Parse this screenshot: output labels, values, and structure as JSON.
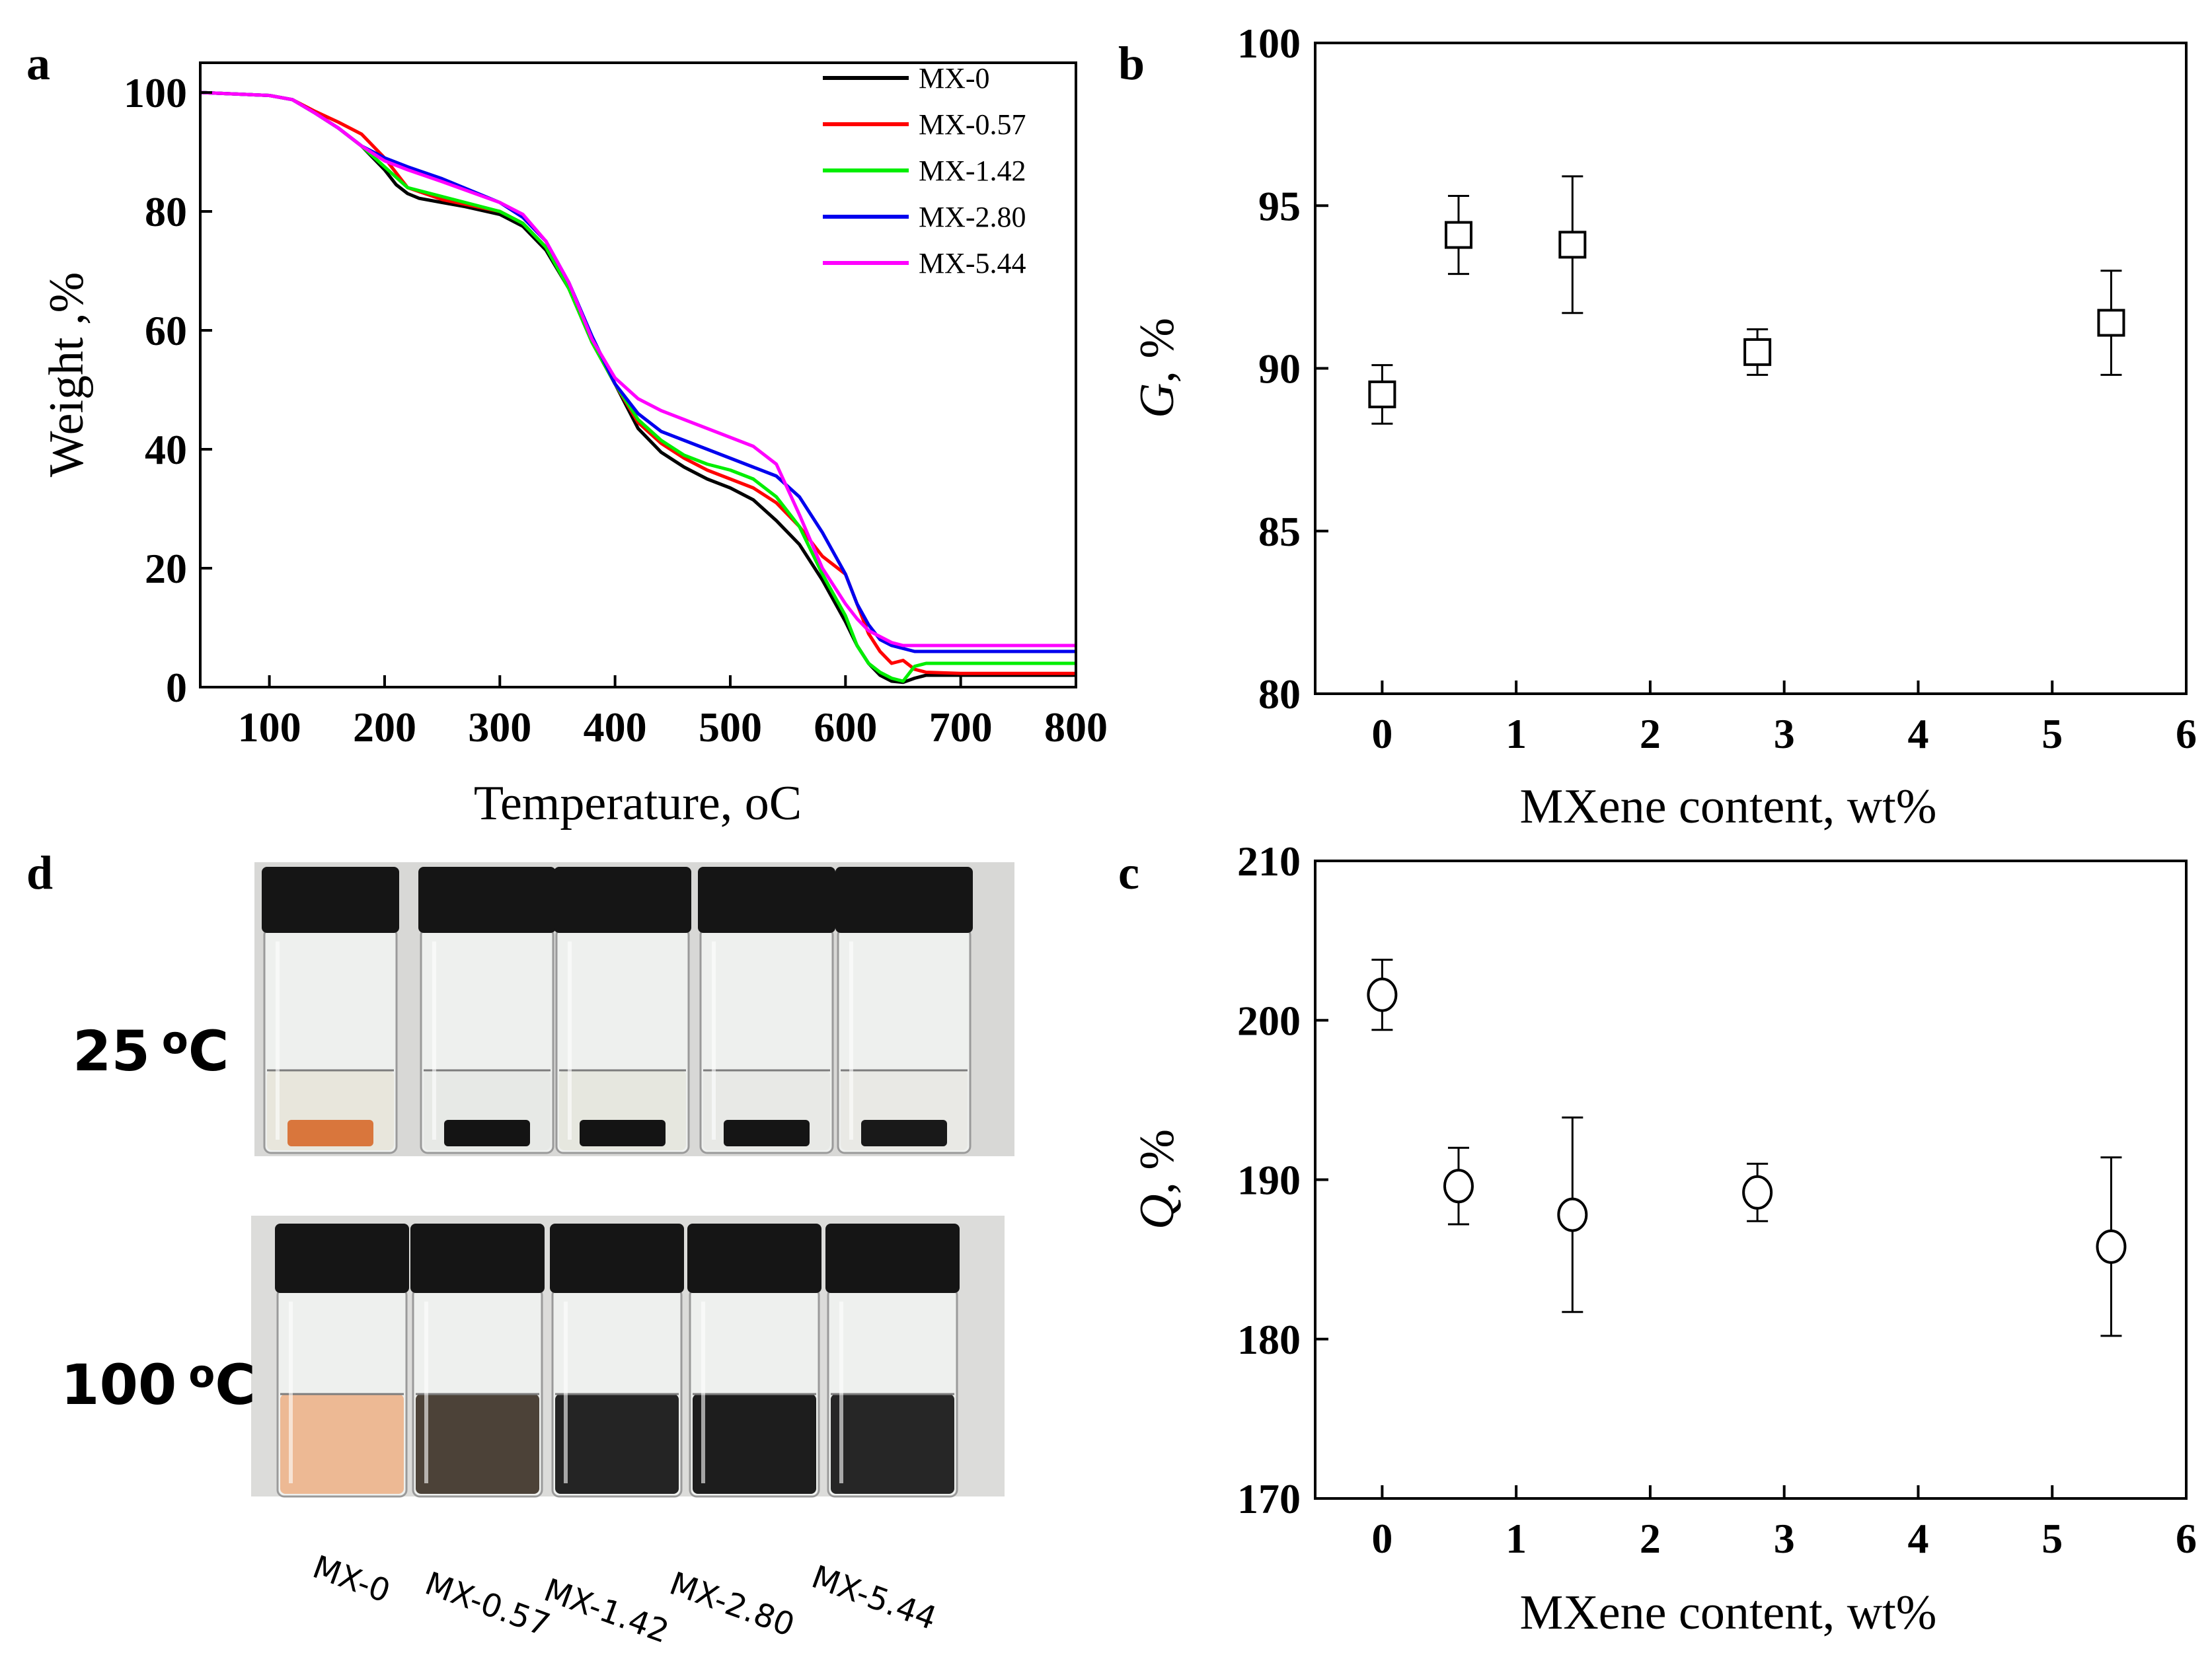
{
  "panels": {
    "a": {
      "letter": "a",
      "chart_data": {
        "type": "line",
        "title": "",
        "xlabel": "Temperature, oC",
        "ylabel": "Weight ,%",
        "xlim": [
          40,
          800
        ],
        "ylim": [
          0,
          105
        ],
        "xticks": [
          100,
          200,
          300,
          400,
          500,
          600,
          700,
          800
        ],
        "yticks": [
          0,
          20,
          40,
          60,
          80,
          100
        ],
        "legend_position": "top-right",
        "series": [
          {
            "name": "MX-0",
            "color": "#000000",
            "x": [
              40,
              100,
              120,
              140,
              160,
              180,
              200,
              210,
              220,
              230,
              250,
              270,
              300,
              320,
              340,
              360,
              380,
              400,
              420,
              440,
              460,
              480,
              500,
              520,
              540,
              560,
              580,
              600,
              610,
              620,
              630,
              640,
              650,
              660,
              670,
              700,
              800
            ],
            "y": [
              100,
              99.5,
              98.8,
              96.5,
              94,
              91,
              87,
              84.5,
              83,
              82.2,
              81.5,
              80.8,
              79.5,
              77.5,
              73.5,
              67,
              58,
              51,
              43.5,
              39.5,
              37,
              35,
              33.5,
              31.5,
              28,
              24,
              18,
              11,
              7,
              4,
              2,
              1,
              0.8,
              1.5,
              2,
              2,
              2
            ]
          },
          {
            "name": "MX-0.57",
            "color": "#ff0000",
            "x": [
              40,
              100,
              120,
              140,
              160,
              180,
              200,
              220,
              250,
              300,
              320,
              340,
              360,
              380,
              400,
              420,
              440,
              460,
              480,
              500,
              520,
              540,
              560,
              580,
              600,
              610,
              620,
              630,
              640,
              650,
              660,
              670,
              700,
              800
            ],
            "y": [
              100,
              99.5,
              98.8,
              96.8,
              95,
              93,
              89,
              84,
              82,
              80,
              78,
              74,
              67,
              58,
              51,
              44.5,
              41,
              38.5,
              36.5,
              35,
              33.5,
              31,
              27,
              22,
              19,
              14,
              9,
              6,
              4,
              4.5,
              3,
              2.5,
              2.3,
              2.3
            ]
          },
          {
            "name": "MX-1.42",
            "color": "#00ee00",
            "x": [
              40,
              100,
              120,
              140,
              160,
              180,
              200,
              220,
              250,
              300,
              320,
              340,
              360,
              380,
              400,
              420,
              440,
              460,
              480,
              500,
              520,
              540,
              560,
              580,
              600,
              610,
              620,
              630,
              640,
              650,
              660,
              670,
              700,
              800
            ],
            "y": [
              100,
              99.5,
              98.8,
              96.5,
              94,
              91,
              87.5,
              84,
              82.5,
              80,
              78,
              74,
              67,
              58,
              51,
              45,
              41.5,
              39,
              37.5,
              36.5,
              35,
              32,
              27,
              19,
              12,
              7,
              4,
              2.5,
              1.5,
              1,
              3.5,
              4,
              4,
              4
            ]
          },
          {
            "name": "MX-2.80",
            "color": "#0000ee",
            "x": [
              40,
              100,
              120,
              140,
              160,
              180,
              200,
              220,
              250,
              300,
              320,
              340,
              360,
              380,
              400,
              420,
              440,
              460,
              480,
              500,
              520,
              540,
              560,
              580,
              600,
              610,
              620,
              630,
              640,
              650,
              660,
              670,
              700,
              800
            ],
            "y": [
              100,
              99.5,
              98.8,
              96.5,
              94,
              91,
              89,
              87.5,
              85.5,
              81.5,
              79,
              75,
              68,
              59,
              51,
              46,
              43,
              41.5,
              40,
              38.5,
              37,
              35.5,
              32,
              26,
              19,
              14,
              10.5,
              8,
              7,
              6.5,
              6,
              6,
              6,
              6
            ]
          },
          {
            "name": "MX-5.44",
            "color": "#ff00ff",
            "x": [
              40,
              100,
              120,
              140,
              160,
              180,
              200,
              220,
              250,
              300,
              320,
              340,
              360,
              380,
              400,
              420,
              440,
              460,
              480,
              500,
              520,
              540,
              560,
              580,
              600,
              610,
              620,
              630,
              640,
              650,
              660,
              670,
              700,
              800
            ],
            "y": [
              100,
              99.5,
              98.8,
              96.5,
              94,
              91,
              88.5,
              87,
              85,
              81.5,
              79.5,
              75,
              68,
              58.5,
              52,
              48.5,
              46.5,
              45,
              43.5,
              42,
              40.5,
              37.5,
              29,
              20,
              14,
              11.5,
              9.5,
              8.5,
              7.5,
              7,
              7,
              7,
              7,
              7
            ]
          }
        ]
      }
    },
    "b": {
      "letter": "b",
      "chart_data": {
        "type": "scatter",
        "title": "",
        "xlabel": "MXene content, wt%",
        "ylabel_symbol": "G",
        "ylabel_unit": ", %",
        "xlim": [
          -0.5,
          6
        ],
        "ylim": [
          80,
          100
        ],
        "xticks": [
          0,
          1,
          2,
          3,
          4,
          5,
          6
        ],
        "yticks": [
          80,
          85,
          90,
          95,
          100
        ],
        "marker": "square-open",
        "series": [
          {
            "name": "G",
            "x": [
              0,
              0.57,
              1.42,
              2.8,
              5.44
            ],
            "y": [
              89.2,
              94.1,
              93.8,
              90.5,
              91.4
            ],
            "err": [
              0.9,
              1.2,
              2.1,
              0.7,
              1.6
            ]
          }
        ]
      }
    },
    "c": {
      "letter": "c",
      "chart_data": {
        "type": "scatter",
        "title": "",
        "xlabel": "MXene content, wt%",
        "ylabel_symbol": "Q",
        "ylabel_unit": ", %",
        "xlim": [
          -0.5,
          6
        ],
        "ylim": [
          170,
          210
        ],
        "xticks": [
          0,
          1,
          2,
          3,
          4,
          5,
          6
        ],
        "yticks": [
          170,
          180,
          190,
          200,
          210
        ],
        "marker": "circle-open",
        "series": [
          {
            "name": "Q",
            "x": [
              0,
              0.57,
              1.42,
              2.8,
              5.44
            ],
            "y": [
              201.6,
              189.6,
              187.8,
              189.2,
              185.8
            ],
            "err": [
              2.2,
              2.4,
              6.1,
              1.8,
              5.6
            ]
          }
        ]
      }
    },
    "d": {
      "letter": "d",
      "row_labels": [
        {
          "value": "25",
          "unit_sup": "o",
          "unit": "C"
        },
        {
          "value": "100",
          "unit_sup": "o",
          "unit": "C"
        }
      ],
      "vial_labels": [
        "MX-0",
        "MX-0.57",
        "MX-1.42",
        "MX-2.80",
        "MX-5.44"
      ],
      "liquid_25": [
        "#e8e6dc",
        "#e7e9e6",
        "#e6e7df",
        "#e8e9e6",
        "#e9e9e5"
      ],
      "solid_25": [
        "#d9763c",
        "#141414",
        "#141414",
        "#151515",
        "#191919"
      ],
      "liquid_100": [
        "#edb994",
        "#4c4238",
        "#242424",
        "#1d1d1d",
        "#262626"
      ]
    }
  }
}
